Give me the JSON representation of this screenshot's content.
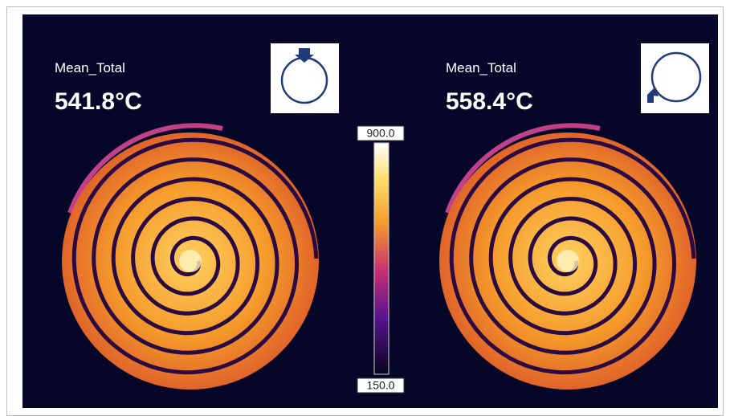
{
  "panels": [
    {
      "label": "Mean_Total",
      "value": "541.8°C"
    },
    {
      "label": "Mean_Total",
      "value": "558.4°C"
    }
  ],
  "colorbar": {
    "max": "900.0",
    "min": "150.0"
  }
}
